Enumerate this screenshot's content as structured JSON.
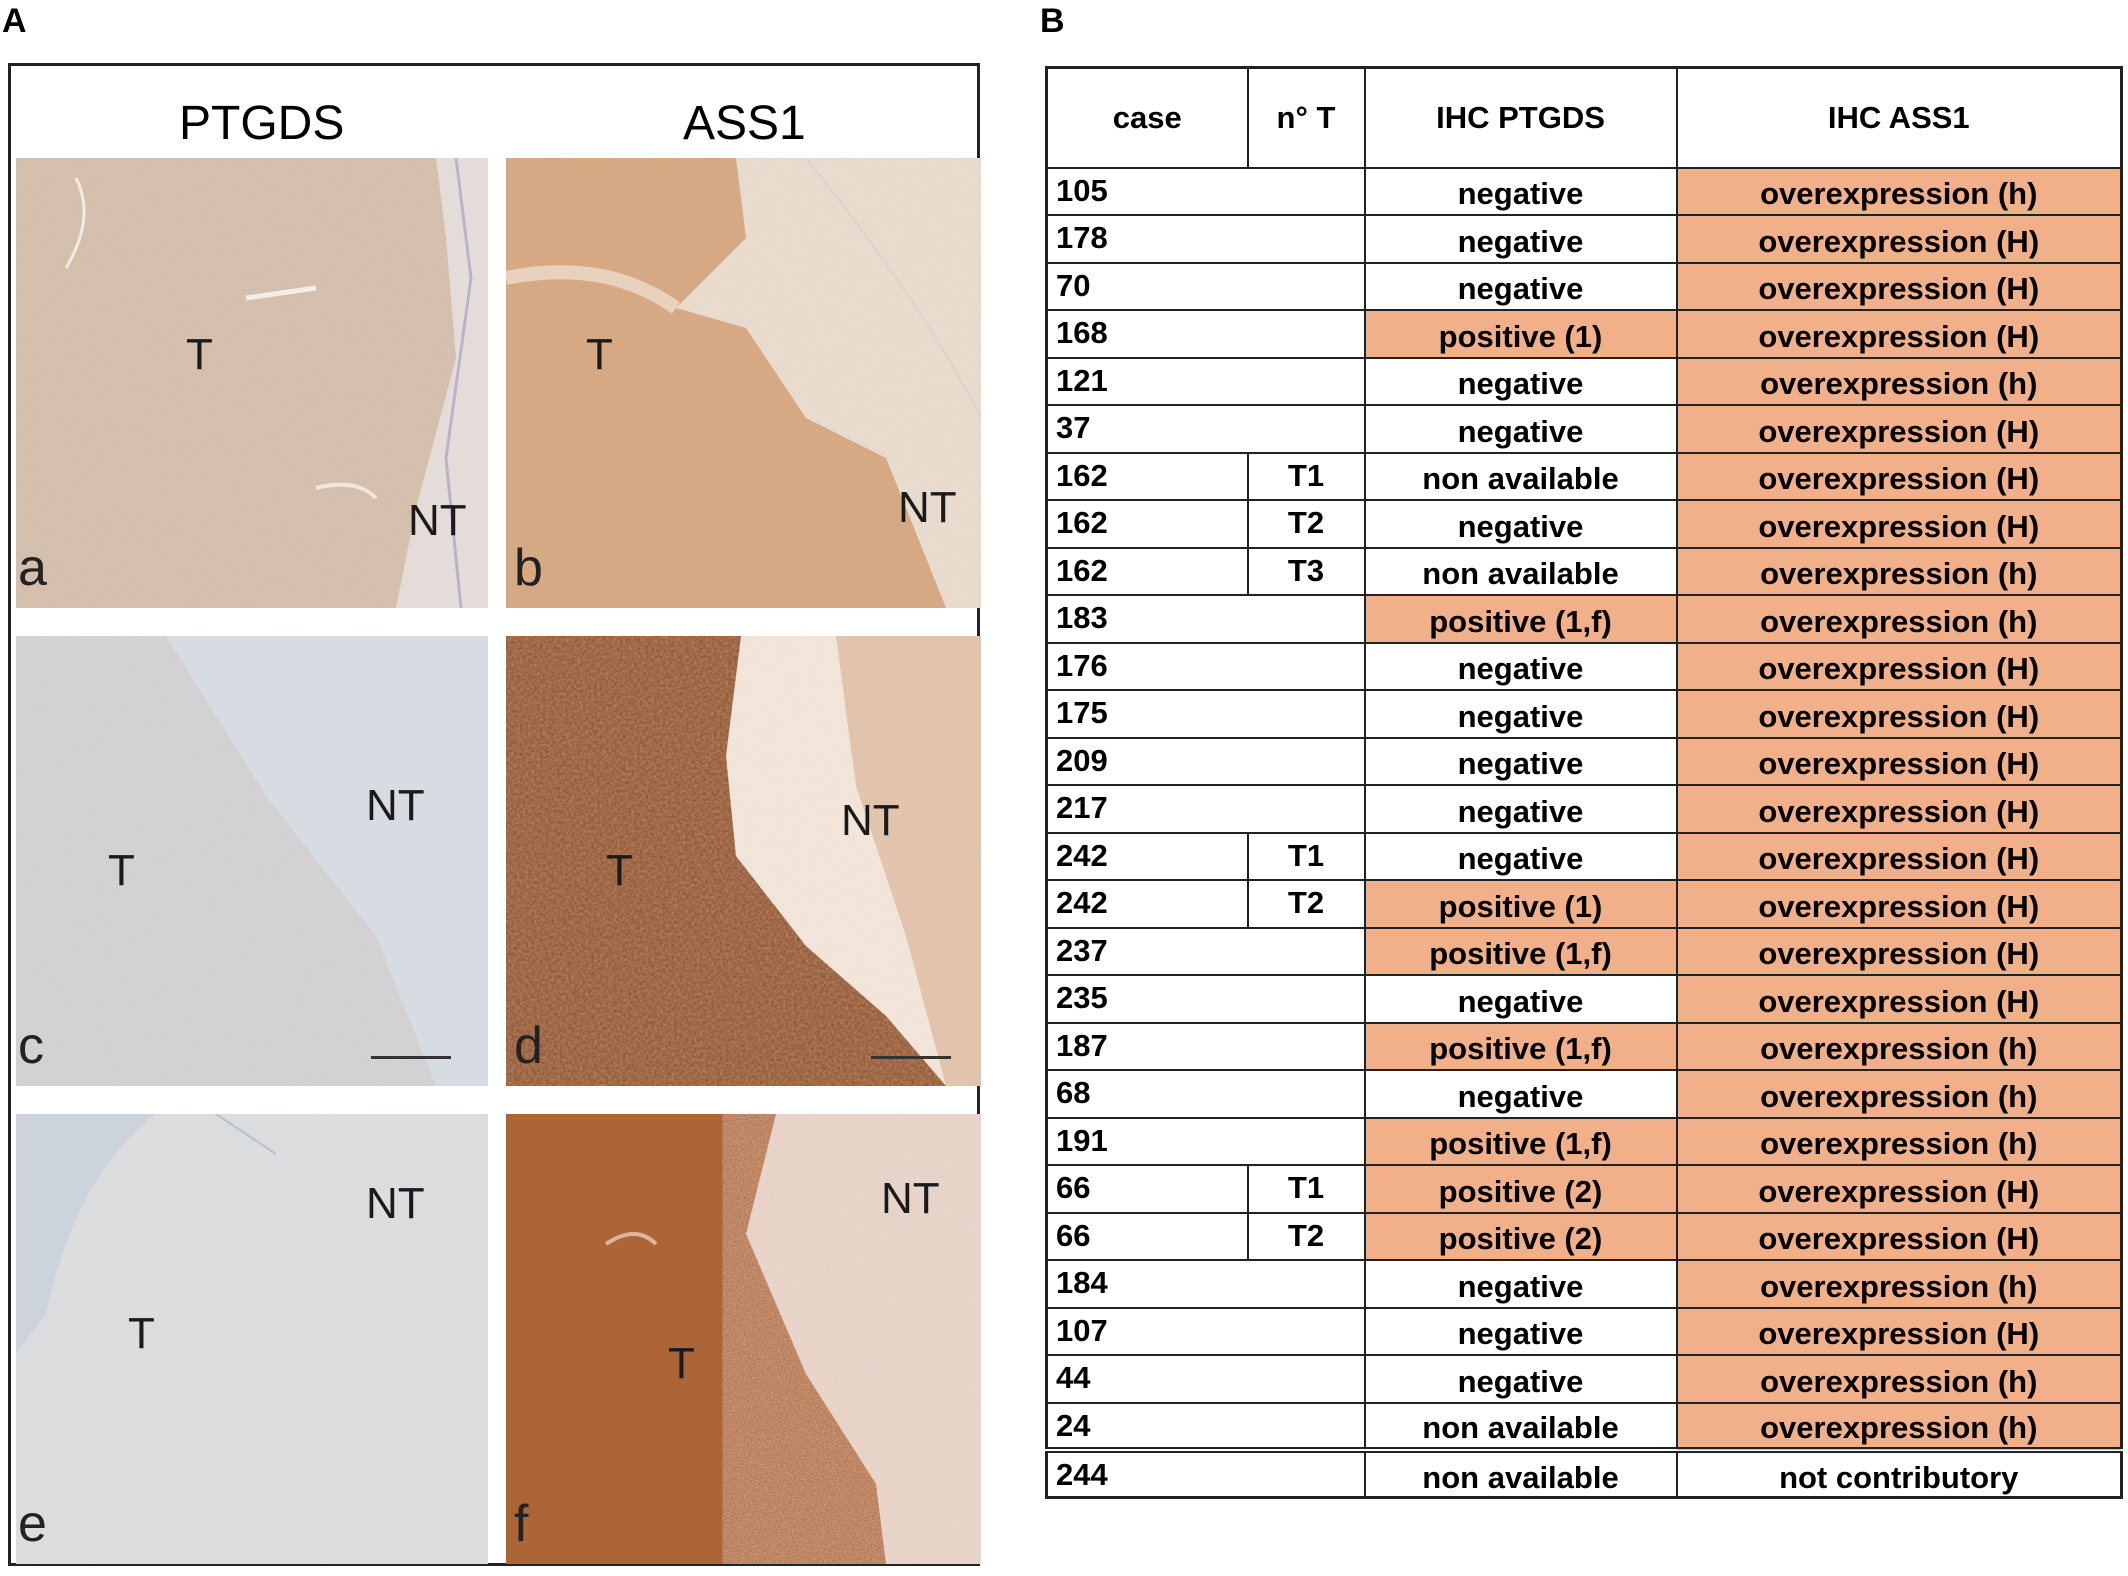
{
  "panel_a": {
    "letter": "A",
    "headers": [
      "PTGDS",
      "ASS1"
    ],
    "images": [
      {
        "letter": "a",
        "labels": [
          "T",
          "NT"
        ]
      },
      {
        "letter": "b",
        "labels": [
          "T",
          "NT"
        ]
      },
      {
        "letter": "c",
        "labels": [
          "T",
          "NT"
        ]
      },
      {
        "letter": "d",
        "labels": [
          "T",
          "NT"
        ]
      },
      {
        "letter": "e",
        "labels": [
          "T",
          "NT"
        ]
      },
      {
        "letter": "f",
        "labels": [
          "T",
          "NT"
        ]
      }
    ]
  },
  "panel_b": {
    "letter": "B",
    "columns": [
      "case",
      "n° T",
      "IHC PTGDS",
      "IHC ASS1"
    ],
    "highlight_color": "#f2b08a",
    "rows": [
      {
        "case": "105",
        "nt": "",
        "ptgds": "negative",
        "ass1": "overexpression (h)"
      },
      {
        "case": "178",
        "nt": "",
        "ptgds": "negative",
        "ass1": "overexpression (H)"
      },
      {
        "case": "70",
        "nt": "",
        "ptgds": "negative",
        "ass1": "overexpression (H)"
      },
      {
        "case": "168",
        "nt": "",
        "ptgds": "positive (1)",
        "ass1": "overexpression (H)"
      },
      {
        "case": "121",
        "nt": "",
        "ptgds": "negative",
        "ass1": "overexpression (h)"
      },
      {
        "case": "37",
        "nt": "",
        "ptgds": "negative",
        "ass1": "overexpression (H)"
      },
      {
        "case": "162",
        "nt": "T1",
        "ptgds": "non available",
        "ass1": "overexpression (H)"
      },
      {
        "case": "162",
        "nt": "T2",
        "ptgds": "negative",
        "ass1": "overexpression (H)"
      },
      {
        "case": "162",
        "nt": "T3",
        "ptgds": "non available",
        "ass1": "overexpression (h)"
      },
      {
        "case": "183",
        "nt": "",
        "ptgds": "positive (1,f)",
        "ass1": "overexpression (h)"
      },
      {
        "case": "176",
        "nt": "",
        "ptgds": "negative",
        "ass1": "overexpression (H)"
      },
      {
        "case": "175",
        "nt": "",
        "ptgds": "negative",
        "ass1": "overexpression (H)"
      },
      {
        "case": "209",
        "nt": "",
        "ptgds": "negative",
        "ass1": "overexpression (H)"
      },
      {
        "case": "217",
        "nt": "",
        "ptgds": "negative",
        "ass1": "overexpression (H)"
      },
      {
        "case": "242",
        "nt": "T1",
        "ptgds": "negative",
        "ass1": "overexpression (H)"
      },
      {
        "case": "242",
        "nt": "T2",
        "ptgds": "positive (1)",
        "ass1": "overexpression (H)"
      },
      {
        "case": "237",
        "nt": "",
        "ptgds": "positive (1,f)",
        "ass1": "overexpression (H)"
      },
      {
        "case": "235",
        "nt": "",
        "ptgds": "negative",
        "ass1": "overexpression (H)"
      },
      {
        "case": "187",
        "nt": "",
        "ptgds": "positive (1,f)",
        "ass1": "overexpression (h)"
      },
      {
        "case": "68",
        "nt": "",
        "ptgds": "negative",
        "ass1": "overexpression (h)"
      },
      {
        "case": "191",
        "nt": "",
        "ptgds": "positive (1,f)",
        "ass1": "overexpression (h)"
      },
      {
        "case": "66",
        "nt": "T1",
        "ptgds": "positive (2)",
        "ass1": "overexpression (H)"
      },
      {
        "case": "66",
        "nt": "T2",
        "ptgds": "positive (2)",
        "ass1": "overexpression (H)"
      },
      {
        "case": "184",
        "nt": "",
        "ptgds": "negative",
        "ass1": "overexpression (h)"
      },
      {
        "case": "107",
        "nt": "",
        "ptgds": "negative",
        "ass1": "overexpression (H)"
      },
      {
        "case": "44",
        "nt": "",
        "ptgds": "negative",
        "ass1": "overexpression (h)"
      },
      {
        "case": "24",
        "nt": "",
        "ptgds": "non available",
        "ass1": "overexpression (h)"
      },
      {
        "case": "244",
        "nt": "",
        "ptgds": "non available",
        "ass1": "not contributory"
      }
    ]
  }
}
